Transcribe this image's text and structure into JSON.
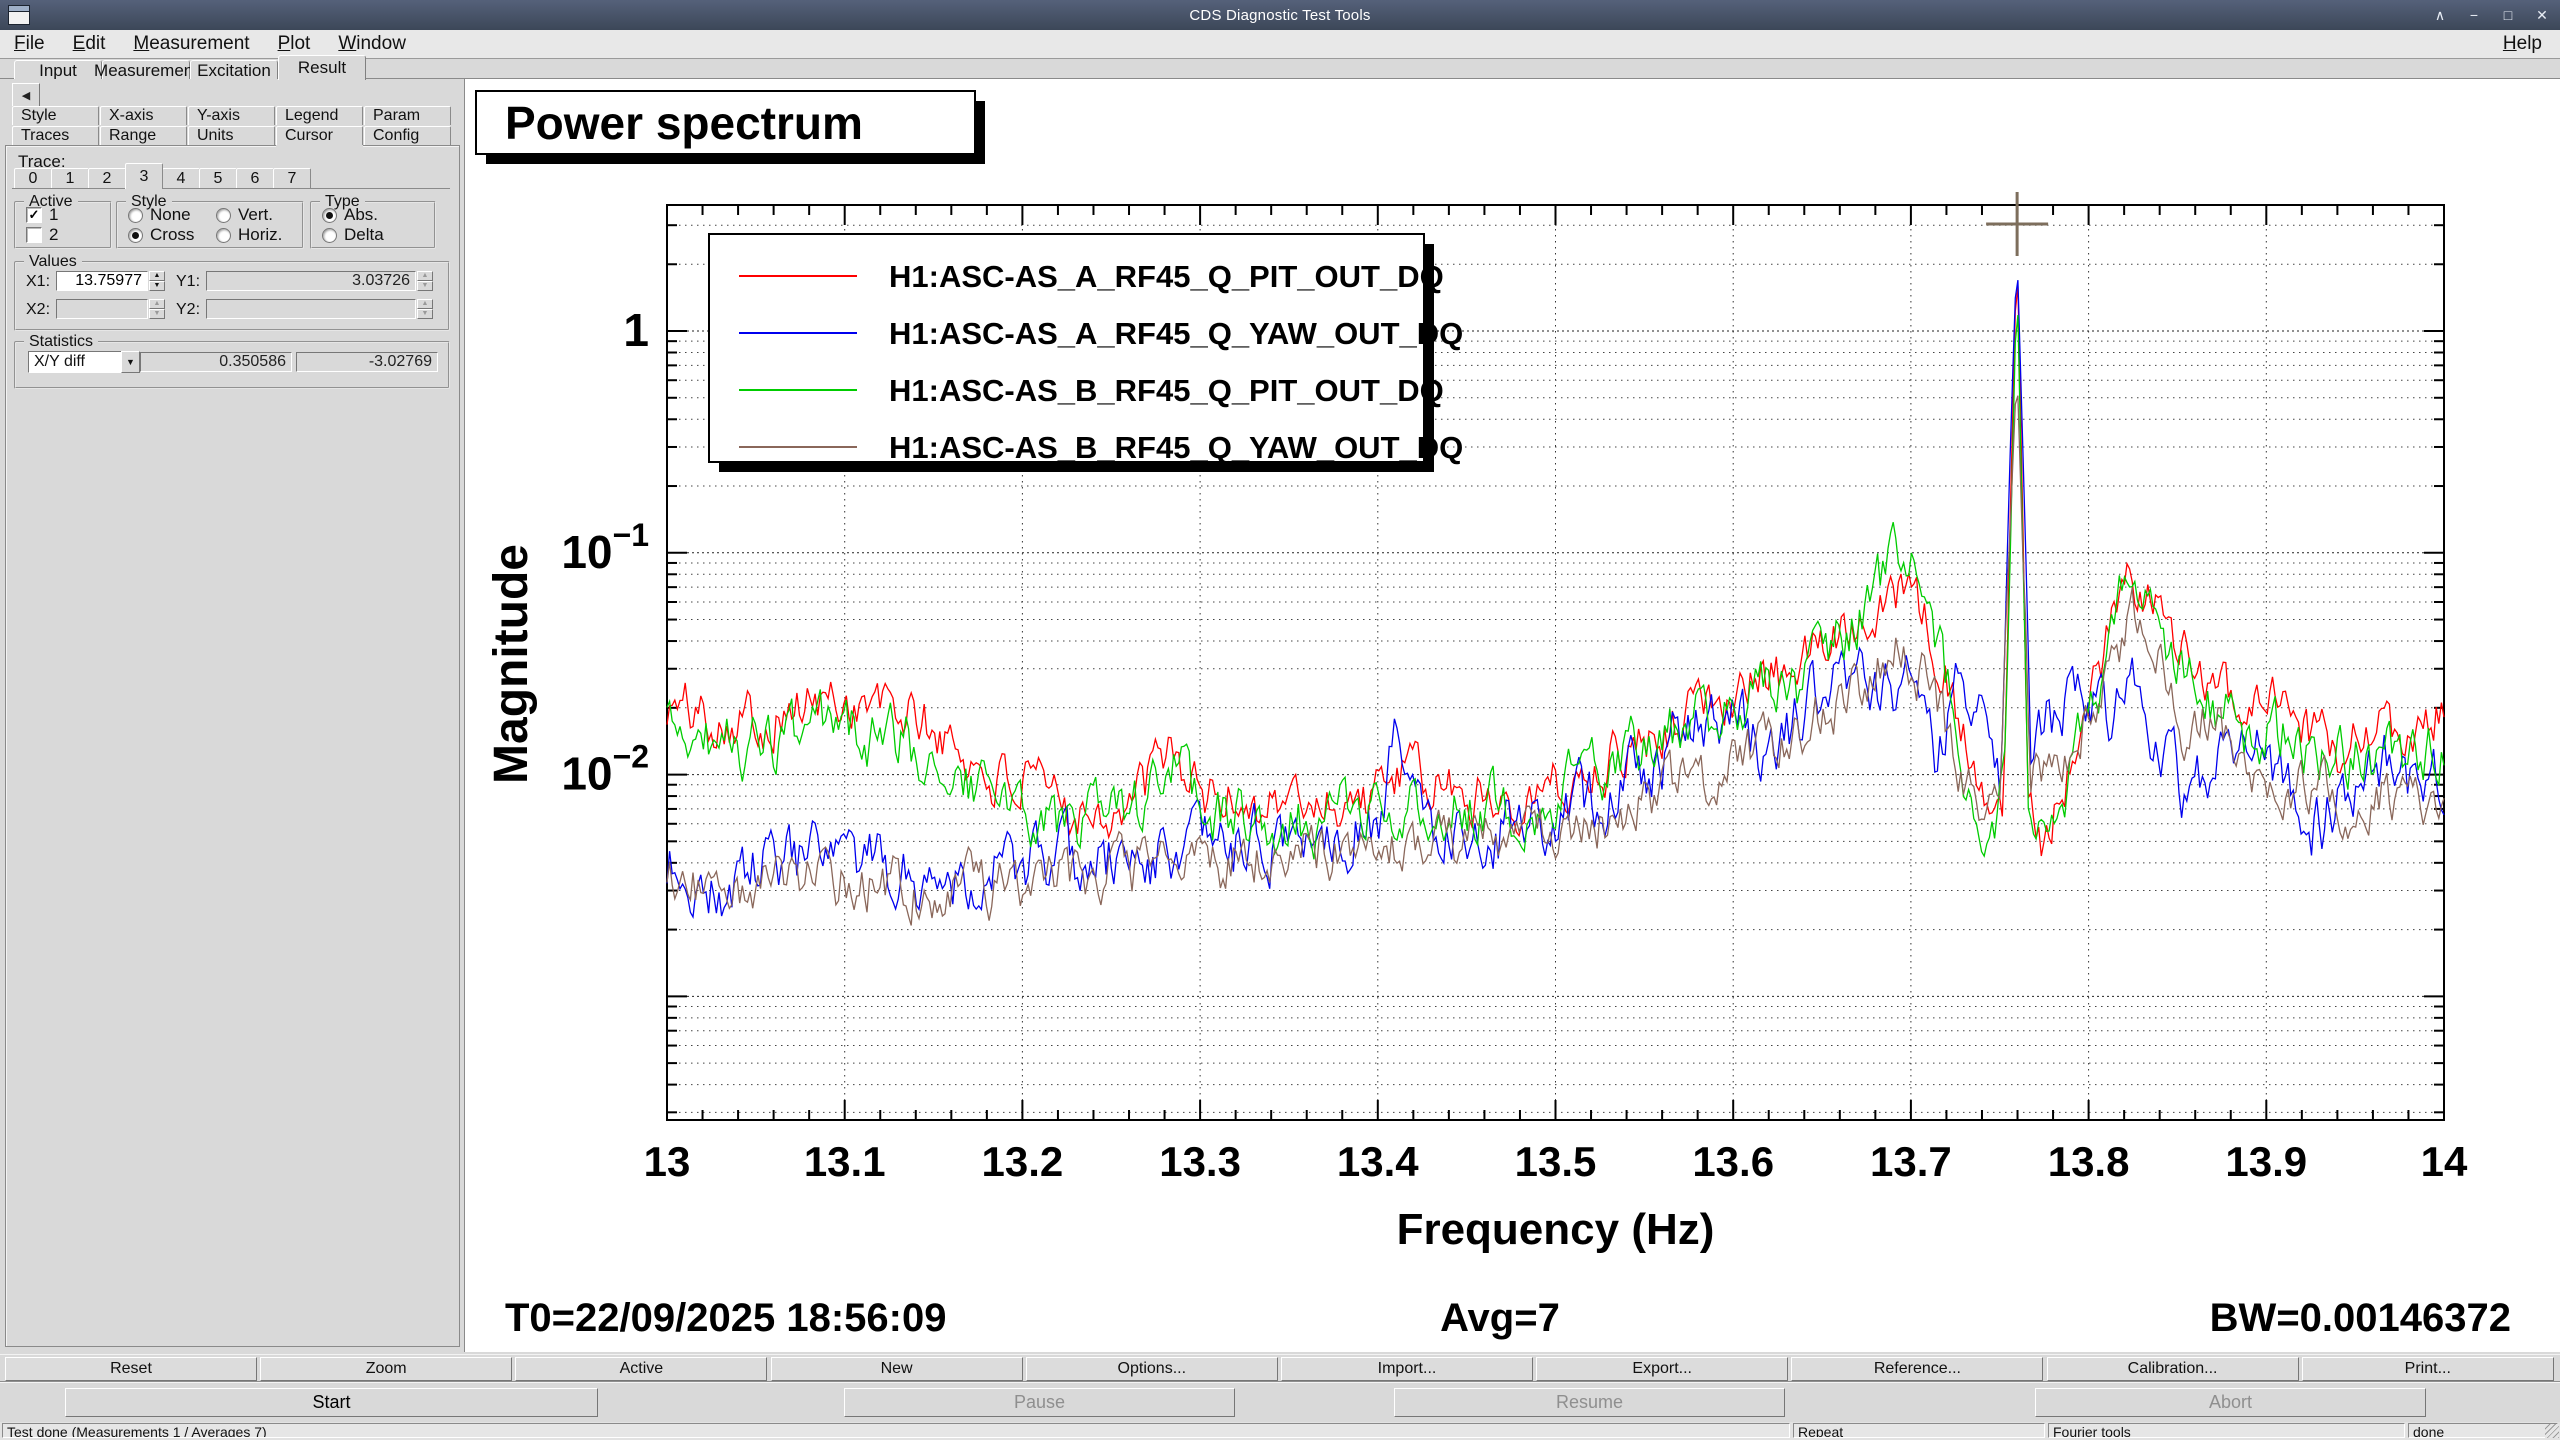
{
  "window": {
    "title": "CDS Diagnostic Test Tools",
    "controls": [
      {
        "name": "shade",
        "glyph": "∧"
      },
      {
        "name": "minimize",
        "glyph": "−"
      },
      {
        "name": "maximize",
        "glyph": "□"
      },
      {
        "name": "close",
        "glyph": "✕"
      }
    ]
  },
  "menubar": {
    "items": [
      "File",
      "Edit",
      "Measurement",
      "Plot",
      "Window"
    ],
    "right_item": "Help"
  },
  "main_tabs": {
    "items": [
      "Input",
      "Measurement",
      "Excitation",
      "Result"
    ],
    "active": "Result"
  },
  "plot_tabs": {
    "row1": [
      "Style",
      "X-axis",
      "Y-axis",
      "Legend",
      "Param"
    ],
    "row2": [
      "Traces",
      "Range",
      "Units",
      "Cursor",
      "Config"
    ],
    "active": "Cursor"
  },
  "cursor_panel": {
    "trace_label": "Trace:",
    "trace_tabs": [
      "0",
      "1",
      "2",
      "3",
      "4",
      "5",
      "6",
      "7"
    ],
    "active_trace": "3",
    "active_group": {
      "title": "Active",
      "options": [
        {
          "label": "1",
          "checked": true
        },
        {
          "label": "2",
          "checked": false
        }
      ]
    },
    "style_group": {
      "title": "Style",
      "options": [
        "None",
        "Vert.",
        "Cross",
        "Horiz."
      ],
      "selected": "Cross"
    },
    "type_group": {
      "title": "Type",
      "options": [
        "Abs.",
        "Delta"
      ],
      "selected": "Abs."
    },
    "values_group": {
      "title": "Values",
      "fields": [
        {
          "label": "X1:",
          "value": "13.75977",
          "enabled": true,
          "spinner": true
        },
        {
          "label": "Y1:",
          "value": "3.03726",
          "enabled": false,
          "spinner": true
        },
        {
          "label": "X2:",
          "value": "",
          "enabled": false,
          "spinner": true
        },
        {
          "label": "Y2:",
          "value": "",
          "enabled": false,
          "spinner": true
        }
      ]
    },
    "statistics_group": {
      "title": "Statistics",
      "selector": "X/Y diff",
      "value1": "0.350586",
      "value2": "-3.02769"
    }
  },
  "toolbar": {
    "buttons": [
      "Reset",
      "Zoom",
      "Active",
      "New",
      "Options...",
      "Import...",
      "Export...",
      "Reference...",
      "Calibration...",
      "Print..."
    ]
  },
  "control_buttons": [
    {
      "label": "Start",
      "enabled": true
    },
    {
      "label": "Pause",
      "enabled": false
    },
    {
      "label": "Resume",
      "enabled": false
    },
    {
      "label": "Abort",
      "enabled": false
    }
  ],
  "statusbar": {
    "segments": [
      "Test done (Measurements 1 / Averages 7)",
      "Repeat",
      "Fourier tools",
      "done"
    ]
  },
  "chart_data": {
    "type": "line",
    "title": "Power spectrum",
    "xlabel": "Frequency (Hz)",
    "ylabel": "Magnitude",
    "xlim": [
      13,
      14
    ],
    "ylog": true,
    "ylim": [
      0.000277,
      3.7
    ],
    "grid": "dotted",
    "legend_position": "top-left",
    "x_ticks": [
      {
        "v": 13,
        "label": "13"
      },
      {
        "v": 13.1,
        "label": "13.1"
      },
      {
        "v": 13.2,
        "label": "13.2"
      },
      {
        "v": 13.3,
        "label": "13.3"
      },
      {
        "v": 13.4,
        "label": "13.4"
      },
      {
        "v": 13.5,
        "label": "13.5"
      },
      {
        "v": 13.6,
        "label": "13.6"
      },
      {
        "v": 13.7,
        "label": "13.7"
      },
      {
        "v": 13.8,
        "label": "13.8"
      },
      {
        "v": 13.9,
        "label": "13.9"
      },
      {
        "v": 14,
        "label": "14"
      }
    ],
    "y_ticks": [
      {
        "v": 1,
        "mantissa": "1",
        "exponent": ""
      },
      {
        "v": 0.1,
        "mantissa": "10",
        "exponent": "−1"
      },
      {
        "v": 0.01,
        "mantissa": "10",
        "exponent": "−2"
      }
    ],
    "annotations": {
      "t0": "T0=22/09/2025 18:56:09",
      "avg": "Avg=7",
      "bw": "BW=0.00146372"
    },
    "cursor": {
      "x": 13.75977,
      "y": 3.03726,
      "style": "cross",
      "color": "#7d6e5c"
    },
    "n_points": 685,
    "series": [
      {
        "name": "H1:ASC-AS_A_RF45_Q_PIT_OUT_DQ",
        "color": "#ff0000",
        "noise_sigma": 0.1,
        "seed": 101,
        "anchors": [
          [
            13.0,
            0.02
          ],
          [
            13.05,
            0.018
          ],
          [
            13.1,
            0.022
          ],
          [
            13.14,
            0.018
          ],
          [
            13.18,
            0.01
          ],
          [
            13.22,
            0.0075
          ],
          [
            13.26,
            0.007
          ],
          [
            13.285,
            0.013
          ],
          [
            13.3,
            0.008
          ],
          [
            13.35,
            0.0075
          ],
          [
            13.4,
            0.008
          ],
          [
            13.41,
            0.01
          ],
          [
            13.45,
            0.008
          ],
          [
            13.5,
            0.0085
          ],
          [
            13.55,
            0.015
          ],
          [
            13.6,
            0.025
          ],
          [
            13.63,
            0.028
          ],
          [
            13.66,
            0.045
          ],
          [
            13.69,
            0.075
          ],
          [
            13.705,
            0.055
          ],
          [
            13.72,
            0.03
          ],
          [
            13.735,
            0.01
          ],
          [
            13.745,
            0.006
          ],
          [
            13.752,
            0.008
          ],
          [
            13.7597,
            2.6
          ],
          [
            13.766,
            0.01
          ],
          [
            13.775,
            0.005
          ],
          [
            13.79,
            0.012
          ],
          [
            13.81,
            0.04
          ],
          [
            13.825,
            0.075
          ],
          [
            13.835,
            0.06
          ],
          [
            13.85,
            0.035
          ],
          [
            13.87,
            0.03
          ],
          [
            13.885,
            0.02
          ],
          [
            13.9,
            0.022
          ],
          [
            13.92,
            0.015
          ],
          [
            13.94,
            0.013
          ],
          [
            13.96,
            0.016
          ],
          [
            13.98,
            0.015
          ],
          [
            14.0,
            0.02
          ]
        ]
      },
      {
        "name": "H1:ASC-AS_A_RF45_Q_YAW_OUT_DQ",
        "color": "#0000ee",
        "noise_sigma": 0.12,
        "seed": 202,
        "anchors": [
          [
            13.0,
            0.004
          ],
          [
            13.03,
            0.0028
          ],
          [
            13.06,
            0.0042
          ],
          [
            13.1,
            0.0038
          ],
          [
            13.15,
            0.0035
          ],
          [
            13.2,
            0.0038
          ],
          [
            13.25,
            0.004
          ],
          [
            13.3,
            0.0045
          ],
          [
            13.35,
            0.005
          ],
          [
            13.4,
            0.0065
          ],
          [
            13.41,
            0.013
          ],
          [
            13.43,
            0.006
          ],
          [
            13.46,
            0.0055
          ],
          [
            13.5,
            0.006
          ],
          [
            13.54,
            0.0095
          ],
          [
            13.57,
            0.014
          ],
          [
            13.6,
            0.02
          ],
          [
            13.62,
            0.012
          ],
          [
            13.645,
            0.022
          ],
          [
            13.665,
            0.03
          ],
          [
            13.68,
            0.022
          ],
          [
            13.7,
            0.03
          ],
          [
            13.715,
            0.012
          ],
          [
            13.73,
            0.028
          ],
          [
            13.742,
            0.018
          ],
          [
            13.75,
            0.01
          ],
          [
            13.7597,
            2.3
          ],
          [
            13.768,
            0.012
          ],
          [
            13.78,
            0.018
          ],
          [
            13.795,
            0.022
          ],
          [
            13.81,
            0.018
          ],
          [
            13.825,
            0.028
          ],
          [
            13.84,
            0.015
          ],
          [
            13.855,
            0.0085
          ],
          [
            13.87,
            0.012
          ],
          [
            13.885,
            0.016
          ],
          [
            13.9,
            0.012
          ],
          [
            13.915,
            0.0095
          ],
          [
            13.93,
            0.0055
          ],
          [
            13.95,
            0.01
          ],
          [
            13.97,
            0.012
          ],
          [
            13.985,
            0.0085
          ],
          [
            14.0,
            0.0095
          ]
        ]
      },
      {
        "name": "H1:ASC-AS_B_RF45_Q_PIT_OUT_DQ",
        "color": "#00cc00",
        "noise_sigma": 0.11,
        "seed": 303,
        "anchors": [
          [
            13.0,
            0.016
          ],
          [
            13.05,
            0.013
          ],
          [
            13.1,
            0.016
          ],
          [
            13.14,
            0.013
          ],
          [
            13.18,
            0.008
          ],
          [
            13.22,
            0.006
          ],
          [
            13.26,
            0.006
          ],
          [
            13.285,
            0.011
          ],
          [
            13.3,
            0.007
          ],
          [
            13.35,
            0.006
          ],
          [
            13.4,
            0.007
          ],
          [
            13.45,
            0.007
          ],
          [
            13.5,
            0.008
          ],
          [
            13.55,
            0.013
          ],
          [
            13.6,
            0.02
          ],
          [
            13.64,
            0.025
          ],
          [
            13.67,
            0.05
          ],
          [
            13.695,
            0.11
          ],
          [
            13.71,
            0.06
          ],
          [
            13.72,
            0.025
          ],
          [
            13.735,
            0.008
          ],
          [
            13.745,
            0.005
          ],
          [
            13.753,
            0.01
          ],
          [
            13.7597,
            1.8
          ],
          [
            13.766,
            0.008
          ],
          [
            13.775,
            0.004
          ],
          [
            13.79,
            0.01
          ],
          [
            13.81,
            0.035
          ],
          [
            13.825,
            0.09
          ],
          [
            13.835,
            0.07
          ],
          [
            13.85,
            0.03
          ],
          [
            13.87,
            0.022
          ],
          [
            13.89,
            0.015
          ],
          [
            13.91,
            0.015
          ],
          [
            13.93,
            0.011
          ],
          [
            13.95,
            0.012
          ],
          [
            13.97,
            0.012
          ],
          [
            14.0,
            0.014
          ]
        ]
      },
      {
        "name": "H1:ASC-AS_B_RF45_Q_YAW_OUT_DQ",
        "color": "#8a675a",
        "noise_sigma": 0.1,
        "seed": 404,
        "anchors": [
          [
            13.0,
            0.0035
          ],
          [
            13.04,
            0.0028
          ],
          [
            13.08,
            0.0035
          ],
          [
            13.12,
            0.0032
          ],
          [
            13.16,
            0.003
          ],
          [
            13.2,
            0.0033
          ],
          [
            13.25,
            0.0035
          ],
          [
            13.3,
            0.004
          ],
          [
            13.35,
            0.0042
          ],
          [
            13.4,
            0.005
          ],
          [
            13.44,
            0.0048
          ],
          [
            13.48,
            0.005
          ],
          [
            13.52,
            0.006
          ],
          [
            13.56,
            0.0085
          ],
          [
            13.6,
            0.011
          ],
          [
            13.63,
            0.013
          ],
          [
            13.66,
            0.022
          ],
          [
            13.68,
            0.03
          ],
          [
            13.695,
            0.04
          ],
          [
            13.71,
            0.025
          ],
          [
            13.725,
            0.012
          ],
          [
            13.74,
            0.008
          ],
          [
            13.75,
            0.01
          ],
          [
            13.7597,
            0.7
          ],
          [
            13.767,
            0.009
          ],
          [
            13.78,
            0.01
          ],
          [
            13.795,
            0.015
          ],
          [
            13.81,
            0.025
          ],
          [
            13.825,
            0.05
          ],
          [
            13.84,
            0.03
          ],
          [
            13.855,
            0.015
          ],
          [
            13.87,
            0.018
          ],
          [
            13.885,
            0.012
          ],
          [
            13.9,
            0.01
          ],
          [
            13.92,
            0.0085
          ],
          [
            13.94,
            0.0075
          ],
          [
            13.96,
            0.008
          ],
          [
            13.98,
            0.0072
          ],
          [
            14.0,
            0.008
          ]
        ]
      }
    ]
  }
}
